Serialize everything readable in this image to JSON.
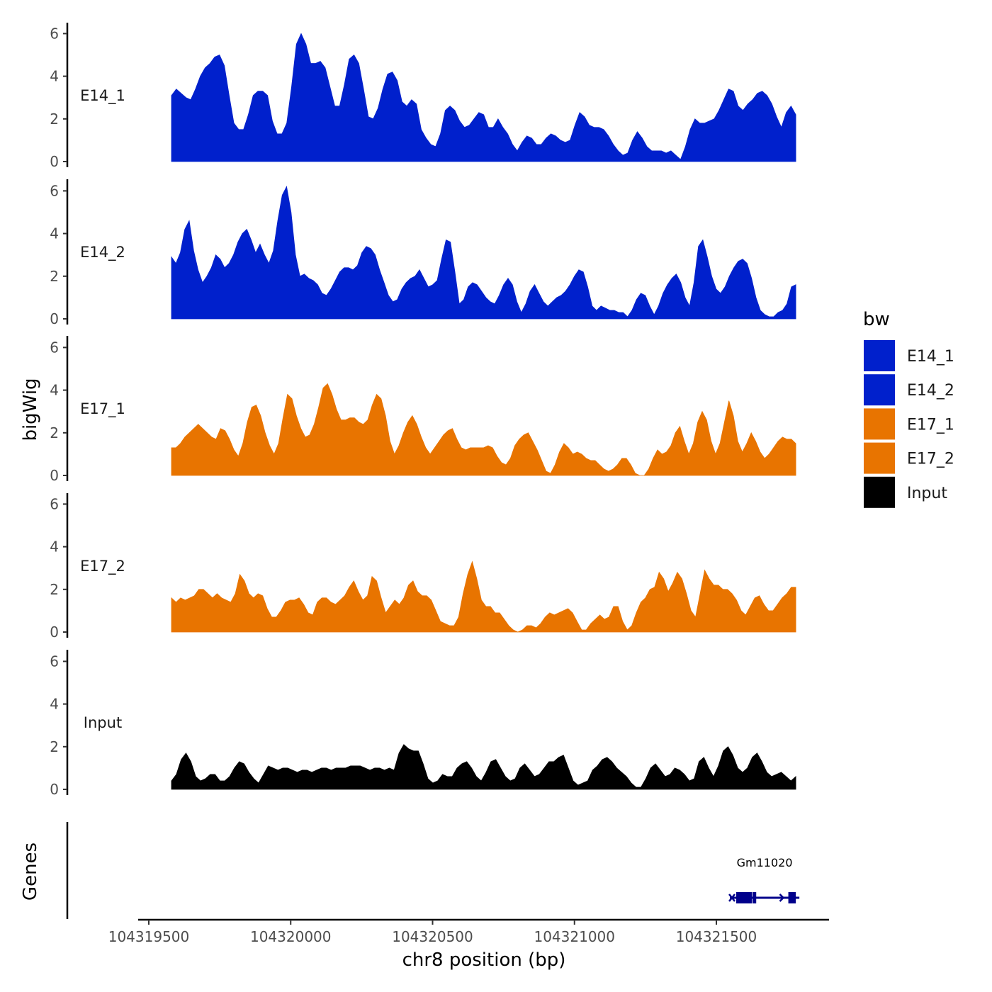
{
  "colors": {
    "E14": "#0020CC",
    "E17": "#E87400",
    "Input": "#000000",
    "gene": "#00008B"
  },
  "chart_data": {
    "type": "area",
    "ylabel": "bigWig",
    "xlabel": "chr8 position (bp)",
    "ylim": [
      0,
      6.5
    ],
    "yticks": [
      0,
      2,
      4,
      6
    ],
    "xlim": [
      104319500,
      104321800
    ],
    "xticks": [
      "104319500",
      "104320000",
      "104320500",
      "104321000",
      "104321500"
    ],
    "x_tick_values": [
      104319500,
      104320000,
      104320500,
      104321000,
      104321500
    ],
    "x_start": 104319580,
    "x_end": 104321780,
    "tracks": [
      {
        "name": "E14_1",
        "group": "E14",
        "values": [
          3.1,
          3.4,
          3.2,
          3.0,
          2.9,
          3.4,
          4.0,
          4.4,
          4.6,
          4.9,
          5.0,
          4.5,
          3.1,
          1.8,
          1.5,
          1.5,
          2.2,
          3.1,
          3.3,
          3.3,
          3.1,
          1.9,
          1.3,
          1.3,
          1.8,
          3.5,
          5.5,
          6.0,
          5.5,
          4.6,
          4.6,
          4.7,
          4.4,
          3.5,
          2.6,
          2.6,
          3.6,
          4.8,
          5.0,
          4.6,
          3.4,
          2.1,
          2.0,
          2.5,
          3.4,
          4.1,
          4.2,
          3.8,
          2.8,
          2.6,
          2.9,
          2.7,
          1.5,
          1.1,
          0.8,
          0.7,
          1.3,
          2.4,
          2.6,
          2.4,
          1.9,
          1.6,
          1.7,
          2.0,
          2.3,
          2.2,
          1.6,
          1.6,
          2.0,
          1.6,
          1.3,
          0.8,
          0.5,
          0.9,
          1.2,
          1.1,
          0.8,
          0.8,
          1.1,
          1.3,
          1.2,
          1.0,
          0.9,
          1.0,
          1.7,
          2.3,
          2.1,
          1.7,
          1.6,
          1.6,
          1.5,
          1.2,
          0.8,
          0.5,
          0.3,
          0.4,
          1.0,
          1.4,
          1.1,
          0.7,
          0.5,
          0.5,
          0.5,
          0.4,
          0.5,
          0.3,
          0.1,
          0.7,
          1.5,
          2.0,
          1.8,
          1.8,
          1.9,
          2.0,
          2.4,
          2.9,
          3.4,
          3.3,
          2.6,
          2.4,
          2.7,
          2.9,
          3.2,
          3.3,
          3.1,
          2.7,
          2.1,
          1.6,
          2.3,
          2.6,
          2.2
        ]
      },
      {
        "name": "E14_2",
        "group": "E14",
        "values": [
          2.9,
          2.6,
          3.1,
          4.2,
          4.6,
          3.2,
          2.3,
          1.7,
          2.0,
          2.4,
          3.0,
          2.8,
          2.4,
          2.6,
          3.0,
          3.6,
          4.0,
          4.2,
          3.7,
          3.1,
          3.5,
          3.0,
          2.6,
          3.2,
          4.6,
          5.8,
          6.2,
          5.0,
          3.0,
          2.0,
          2.1,
          1.9,
          1.8,
          1.6,
          1.2,
          1.1,
          1.4,
          1.8,
          2.2,
          2.4,
          2.4,
          2.3,
          2.5,
          3.1,
          3.4,
          3.3,
          3.0,
          2.3,
          1.7,
          1.1,
          0.8,
          0.9,
          1.4,
          1.7,
          1.9,
          2.0,
          2.3,
          1.9,
          1.5,
          1.6,
          1.8,
          2.8,
          3.7,
          3.6,
          2.2,
          0.7,
          0.9,
          1.5,
          1.7,
          1.6,
          1.3,
          1.0,
          0.8,
          0.7,
          1.1,
          1.6,
          1.9,
          1.6,
          0.8,
          0.3,
          0.7,
          1.3,
          1.6,
          1.2,
          0.8,
          0.6,
          0.8,
          1.0,
          1.1,
          1.3,
          1.6,
          2.0,
          2.3,
          2.2,
          1.5,
          0.6,
          0.4,
          0.6,
          0.5,
          0.4,
          0.4,
          0.3,
          0.3,
          0.1,
          0.4,
          0.9,
          1.2,
          1.1,
          0.6,
          0.2,
          0.6,
          1.2,
          1.6,
          1.9,
          2.1,
          1.7,
          1.0,
          0.6,
          1.7,
          3.4,
          3.7,
          2.9,
          2.0,
          1.4,
          1.2,
          1.5,
          2.0,
          2.4,
          2.7,
          2.8,
          2.6,
          1.9,
          1.0,
          0.4,
          0.2,
          0.1,
          0.1,
          0.3,
          0.4,
          0.7,
          1.5,
          1.6
        ]
      },
      {
        "name": "E17_1",
        "group": "E17",
        "values": [
          1.3,
          1.3,
          1.5,
          1.8,
          2.0,
          2.2,
          2.4,
          2.2,
          2.0,
          1.8,
          1.7,
          2.2,
          2.1,
          1.7,
          1.2,
          0.9,
          1.5,
          2.5,
          3.2,
          3.3,
          2.8,
          2.0,
          1.4,
          1.0,
          1.5,
          2.7,
          3.8,
          3.6,
          2.8,
          2.2,
          1.8,
          1.9,
          2.4,
          3.2,
          4.1,
          4.3,
          3.8,
          3.1,
          2.6,
          2.6,
          2.7,
          2.7,
          2.5,
          2.4,
          2.6,
          3.3,
          3.8,
          3.6,
          2.8,
          1.6,
          1.0,
          1.4,
          2.0,
          2.5,
          2.8,
          2.4,
          1.8,
          1.3,
          1.0,
          1.3,
          1.6,
          1.9,
          2.1,
          2.2,
          1.7,
          1.3,
          1.2,
          1.3,
          1.3,
          1.3,
          1.3,
          1.4,
          1.3,
          0.9,
          0.6,
          0.5,
          0.8,
          1.4,
          1.7,
          1.9,
          2.0,
          1.6,
          1.2,
          0.7,
          0.2,
          0.1,
          0.5,
          1.1,
          1.5,
          1.3,
          1.0,
          1.1,
          1.0,
          0.8,
          0.7,
          0.7,
          0.5,
          0.3,
          0.2,
          0.3,
          0.5,
          0.8,
          0.8,
          0.5,
          0.1,
          0.0,
          0.0,
          0.3,
          0.8,
          1.2,
          1.0,
          1.1,
          1.4,
          2.0,
          2.3,
          1.6,
          1.0,
          1.5,
          2.5,
          3.0,
          2.6,
          1.6,
          1.0,
          1.5,
          2.5,
          3.5,
          2.8,
          1.6,
          1.1,
          1.5,
          2.0,
          1.6,
          1.1,
          0.8,
          1.0,
          1.3,
          1.6,
          1.8,
          1.7,
          1.7,
          1.5
        ]
      },
      {
        "name": "E17_2",
        "group": "E17",
        "values": [
          1.6,
          1.4,
          1.6,
          1.5,
          1.6,
          1.7,
          2.0,
          2.0,
          1.8,
          1.6,
          1.8,
          1.6,
          1.5,
          1.4,
          1.8,
          2.7,
          2.4,
          1.8,
          1.6,
          1.8,
          1.7,
          1.1,
          0.7,
          0.7,
          1.0,
          1.4,
          1.5,
          1.5,
          1.6,
          1.3,
          0.9,
          0.8,
          1.4,
          1.6,
          1.6,
          1.4,
          1.3,
          1.5,
          1.7,
          2.1,
          2.4,
          1.9,
          1.5,
          1.7,
          2.6,
          2.4,
          1.6,
          0.9,
          1.2,
          1.5,
          1.3,
          1.6,
          2.2,
          2.4,
          1.9,
          1.7,
          1.7,
          1.5,
          1.0,
          0.5,
          0.4,
          0.3,
          0.3,
          0.7,
          1.8,
          2.7,
          3.3,
          2.5,
          1.5,
          1.2,
          1.2,
          0.9,
          0.9,
          0.6,
          0.3,
          0.1,
          0.0,
          0.1,
          0.3,
          0.3,
          0.2,
          0.4,
          0.7,
          0.9,
          0.8,
          0.9,
          1.0,
          1.1,
          0.9,
          0.5,
          0.1,
          0.1,
          0.4,
          0.6,
          0.8,
          0.6,
          0.7,
          1.2,
          1.2,
          0.5,
          0.1,
          0.3,
          0.9,
          1.4,
          1.6,
          2.0,
          2.1,
          2.8,
          2.5,
          1.9,
          2.3,
          2.8,
          2.5,
          1.8,
          1.0,
          0.7,
          1.8,
          2.9,
          2.5,
          2.2,
          2.2,
          2.0,
          2.0,
          1.8,
          1.5,
          1.0,
          0.8,
          1.2,
          1.6,
          1.7,
          1.3,
          1.0,
          1.0,
          1.3,
          1.6,
          1.8,
          2.1,
          2.1
        ]
      },
      {
        "name": "Input",
        "group": "Input",
        "values": [
          0.4,
          0.7,
          1.4,
          1.7,
          1.3,
          0.6,
          0.4,
          0.5,
          0.7,
          0.7,
          0.4,
          0.4,
          0.6,
          1.0,
          1.3,
          1.2,
          0.8,
          0.5,
          0.3,
          0.7,
          1.1,
          1.0,
          0.9,
          1.0,
          1.0,
          0.9,
          0.8,
          0.9,
          0.9,
          0.8,
          0.9,
          1.0,
          1.0,
          0.9,
          1.0,
          1.0,
          1.0,
          1.1,
          1.1,
          1.1,
          1.0,
          0.9,
          1.0,
          1.0,
          0.9,
          1.0,
          0.9,
          1.7,
          2.1,
          1.9,
          1.8,
          1.8,
          1.2,
          0.5,
          0.3,
          0.4,
          0.7,
          0.6,
          0.6,
          1.0,
          1.2,
          1.3,
          1.0,
          0.6,
          0.4,
          0.8,
          1.3,
          1.4,
          1.0,
          0.6,
          0.4,
          0.5,
          1.0,
          1.2,
          0.9,
          0.6,
          0.7,
          1.0,
          1.3,
          1.3,
          1.5,
          1.6,
          1.0,
          0.4,
          0.2,
          0.3,
          0.4,
          0.9,
          1.1,
          1.4,
          1.5,
          1.3,
          1.0,
          0.8,
          0.6,
          0.3,
          0.1,
          0.1,
          0.5,
          1.0,
          1.2,
          0.9,
          0.6,
          0.7,
          1.0,
          0.9,
          0.7,
          0.4,
          0.5,
          1.3,
          1.5,
          1.0,
          0.6,
          1.1,
          1.8,
          2.0,
          1.6,
          1.0,
          0.8,
          1.0,
          1.5,
          1.7,
          1.3,
          0.8,
          0.6,
          0.7,
          0.8,
          0.6,
          0.4,
          0.6
        ]
      }
    ],
    "genes": [
      {
        "name": "Gm11020",
        "start": 104321560,
        "end": 104321780
      }
    ],
    "genes_track_label": "Genes",
    "legend": {
      "title": "bw",
      "entries": [
        "E14_1",
        "E14_2",
        "E17_1",
        "E17_2",
        "Input"
      ],
      "entry_groups": [
        "E14",
        "E14",
        "E17",
        "E17",
        "Input"
      ]
    }
  }
}
